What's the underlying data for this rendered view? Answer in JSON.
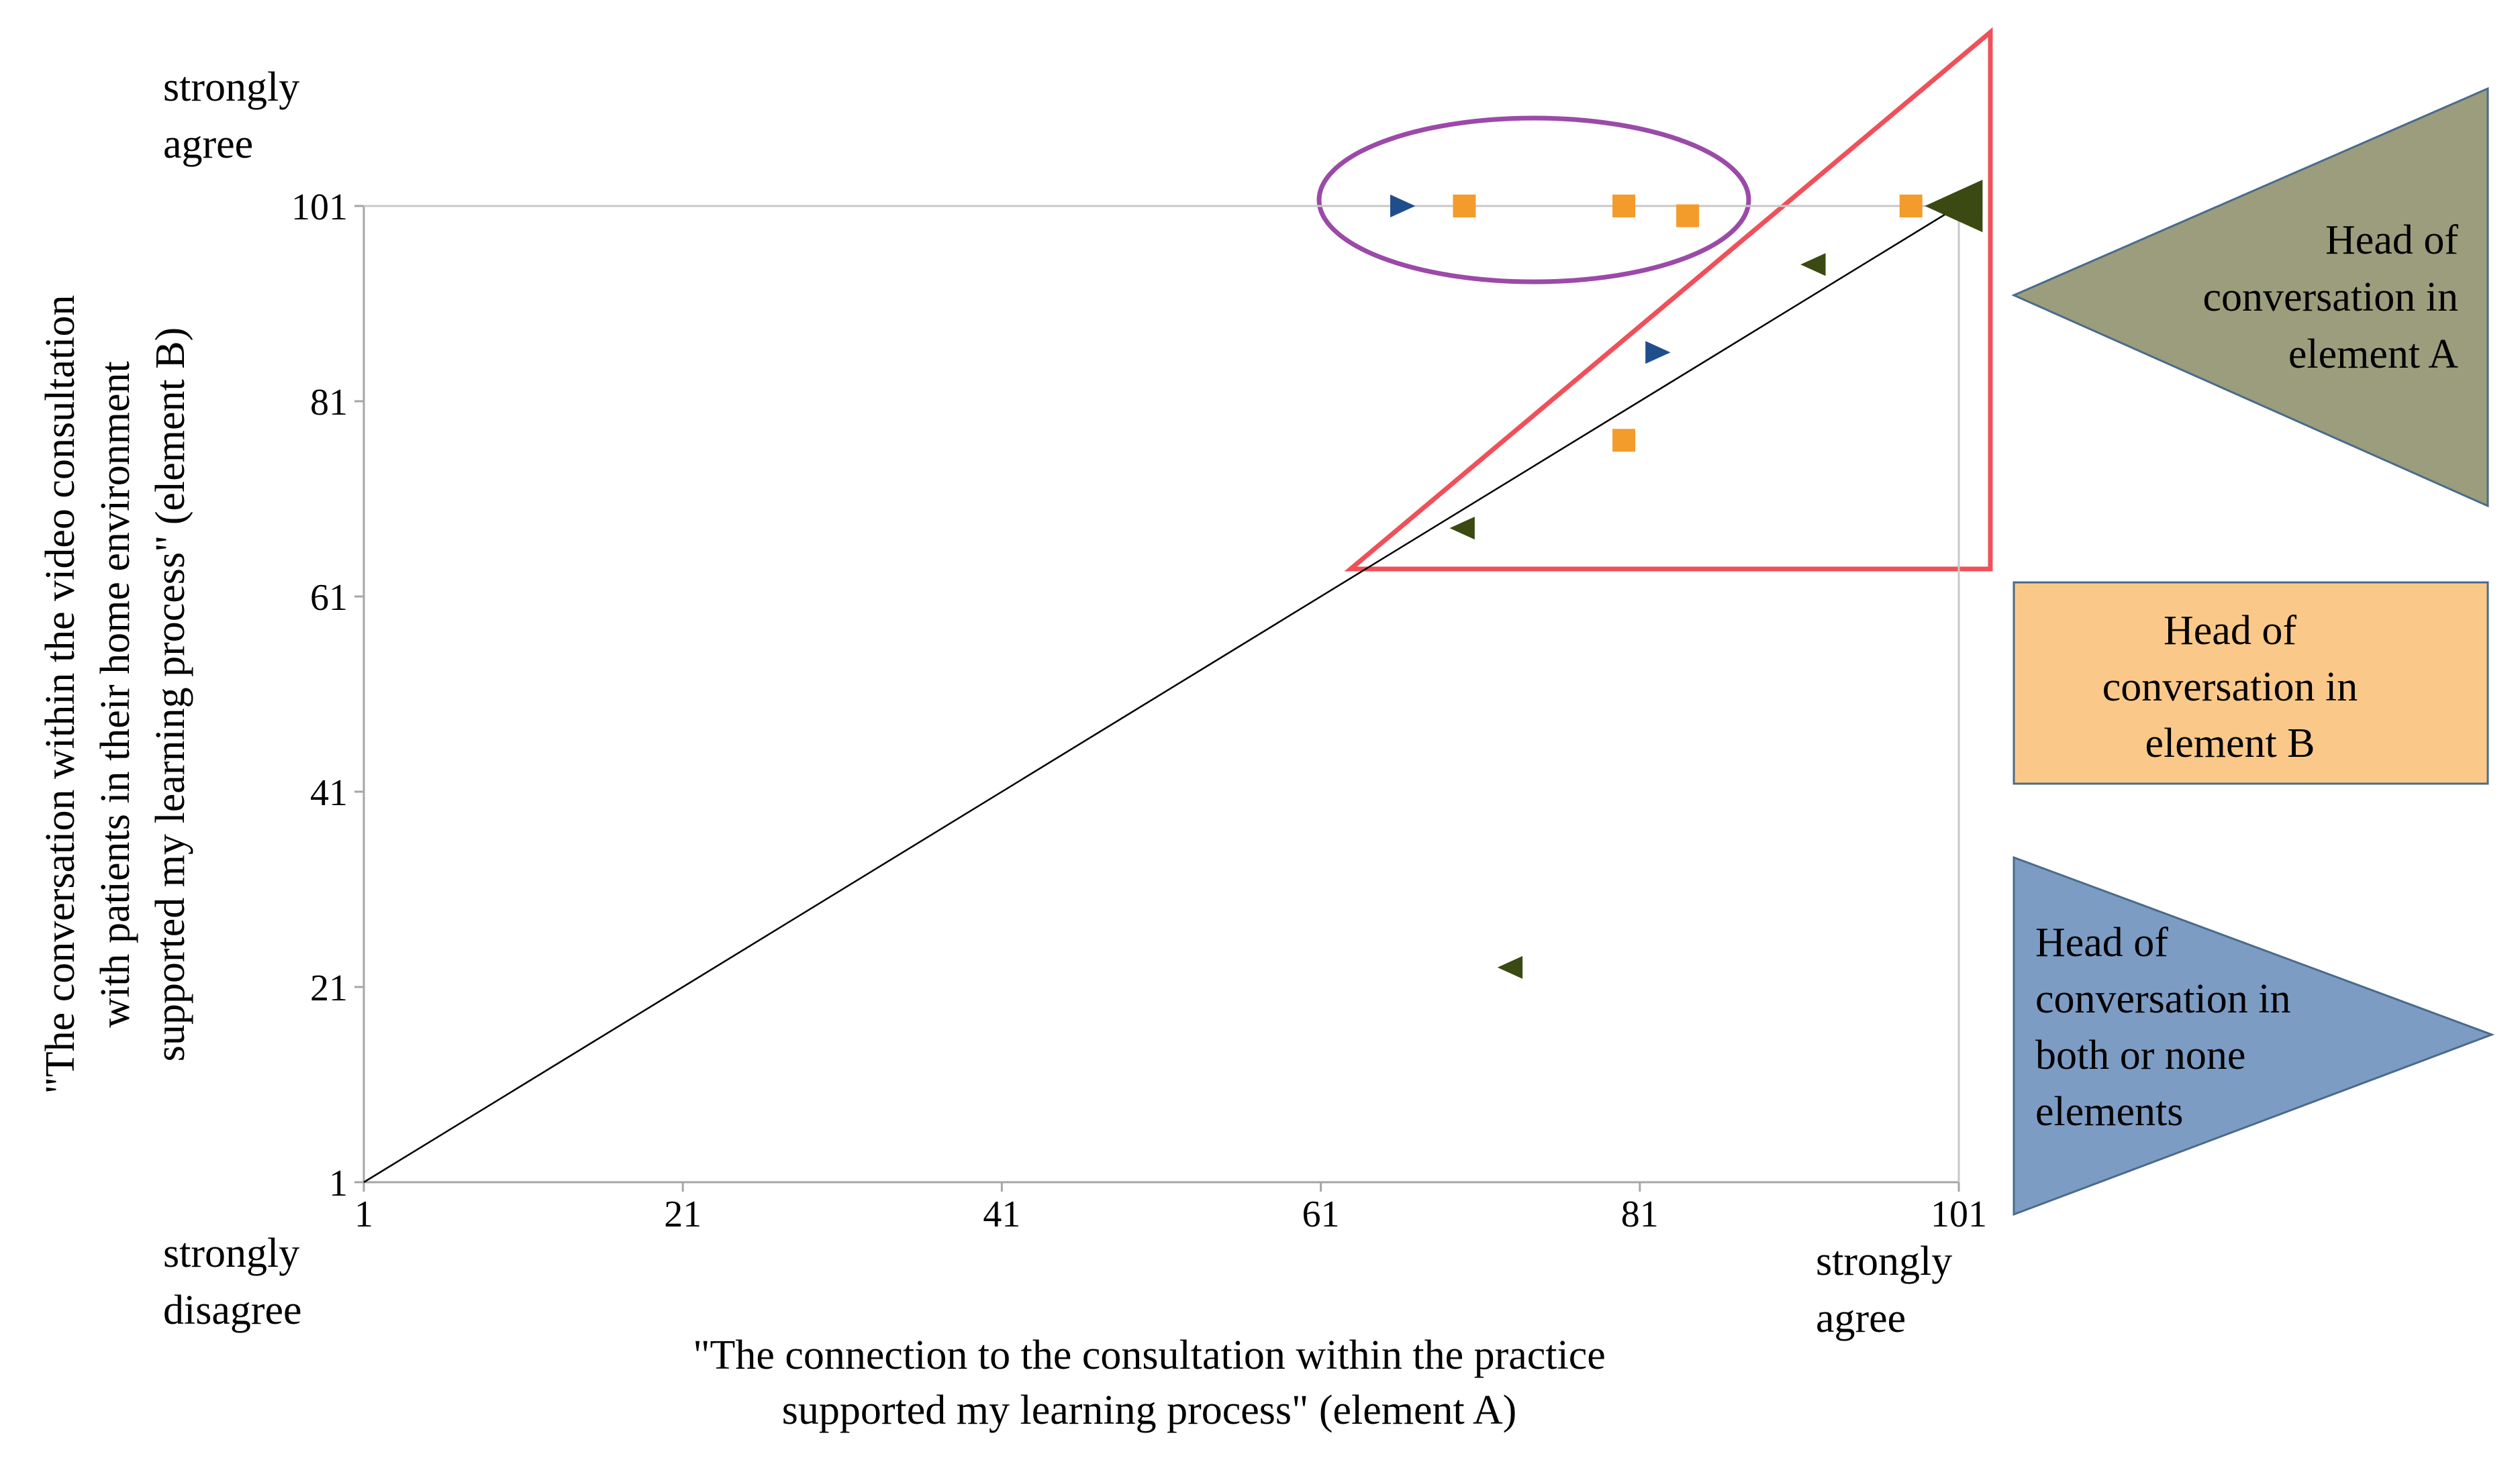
{
  "chart_data": {
    "type": "scatter",
    "title": "",
    "xlabel": [
      "\"The connection to the consultation within the practice",
      "supported my learning process\" (element A)"
    ],
    "ylabel": [
      "\"The conversation within the video consultation",
      "with patients in their home environment",
      "supported my learning process\" (element B)"
    ],
    "xlim": [
      1,
      101
    ],
    "ylim": [
      1,
      101
    ],
    "x_ticks": [
      1,
      21,
      41,
      61,
      81,
      101
    ],
    "y_ticks": [
      1,
      21,
      41,
      61,
      81,
      101
    ],
    "grid": "horizontal line at y=101 only",
    "y_top_anchor": [
      "strongly",
      "agree"
    ],
    "x_origin_anchor": [
      "strongly",
      "disagree"
    ],
    "x_end_anchor": [
      "strongly",
      "agree"
    ],
    "reference_line": {
      "from": [
        1,
        1
      ],
      "to": [
        101,
        101
      ]
    },
    "series": [
      {
        "key": "head_a",
        "marker": "triangle-left",
        "color": "#3a4a12",
        "points": [
          [
            70,
            68
          ],
          [
            73,
            23
          ],
          [
            92,
            95
          ],
          [
            101,
            101
          ]
        ]
      },
      {
        "key": "head_b",
        "marker": "square",
        "color": "#f39c2c",
        "points": [
          [
            70,
            101
          ],
          [
            80,
            101
          ],
          [
            84,
            100
          ],
          [
            98,
            101
          ],
          [
            80,
            77
          ]
        ]
      },
      {
        "key": "head_both",
        "marker": "triangle-right",
        "color": "#1f4e8c",
        "points": [
          [
            66,
            101
          ],
          [
            82,
            86
          ]
        ]
      }
    ],
    "annotations": {
      "ellipse_color": "#9b4aa9",
      "triangle_color": "#f0505a"
    },
    "legend": {
      "placement": "right",
      "items": [
        {
          "key": "head_a",
          "shape": "triangle-left",
          "fill": "#9b9d7c",
          "stroke": "#4a6b8a",
          "lines": [
            "Head of",
            "conversation in",
            "element A"
          ]
        },
        {
          "key": "head_b",
          "shape": "rectangle",
          "fill": "#fac98a",
          "stroke": "#4a6b8a",
          "lines": [
            "Head of",
            "conversation in",
            "element B"
          ]
        },
        {
          "key": "head_both",
          "shape": "triangle-right",
          "fill": "#7d9cc4",
          "stroke": "#4a6b8a",
          "lines": [
            "Head of",
            "conversation in",
            "both or none",
            "elements"
          ]
        }
      ]
    }
  }
}
